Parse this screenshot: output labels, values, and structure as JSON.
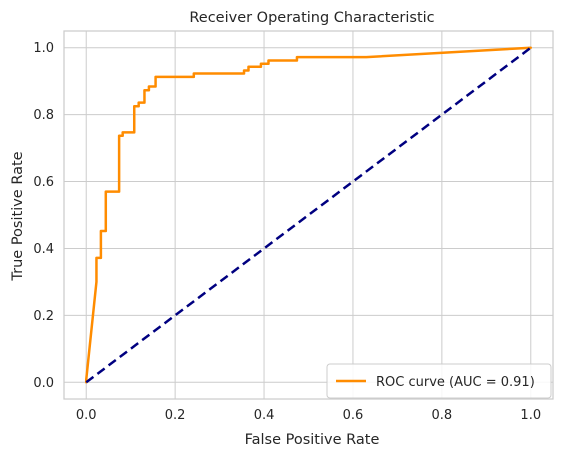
{
  "chart_data": {
    "type": "line",
    "title": "Receiver Operating Characteristic",
    "xlabel": "False Positive Rate",
    "ylabel": "True Positive Rate",
    "xlim": [
      -0.05,
      1.05
    ],
    "ylim": [
      -0.05,
      1.05
    ],
    "x_ticks": [
      0.0,
      0.2,
      0.4,
      0.6,
      0.8,
      1.0
    ],
    "x_tick_labels": [
      "0.0",
      "0.2",
      "0.4",
      "0.6",
      "0.8",
      "1.0"
    ],
    "y_ticks": [
      0.0,
      0.2,
      0.4,
      0.6,
      0.8,
      1.0
    ],
    "y_tick_labels": [
      "0.0",
      "0.2",
      "0.4",
      "0.6",
      "0.8",
      "1.0"
    ],
    "grid": true,
    "legend_position": "bottom-right",
    "series": [
      {
        "name": "ROC curve (AUC = 0.91)",
        "color": "#ff8c00",
        "style": "solid",
        "x": [
          0.0,
          0.0,
          0.023,
          0.023,
          0.033,
          0.033,
          0.044,
          0.044,
          0.066,
          0.066,
          0.074,
          0.074,
          0.082,
          0.082,
          0.108,
          0.108,
          0.118,
          0.118,
          0.131,
          0.131,
          0.141,
          0.141,
          0.156,
          0.156,
          0.242,
          0.242,
          0.355,
          0.355,
          0.365,
          0.365,
          0.393,
          0.393,
          0.41,
          0.41,
          0.474,
          0.474,
          0.63,
          1.0
        ],
        "y": [
          0.0,
          0.008,
          0.3,
          0.372,
          0.372,
          0.452,
          0.452,
          0.57,
          0.57,
          0.57,
          0.57,
          0.737,
          0.737,
          0.747,
          0.747,
          0.825,
          0.825,
          0.836,
          0.836,
          0.873,
          0.873,
          0.884,
          0.884,
          0.913,
          0.913,
          0.923,
          0.923,
          0.932,
          0.932,
          0.943,
          0.943,
          0.952,
          0.952,
          0.962,
          0.962,
          0.972,
          0.972,
          1.0
        ]
      },
      {
        "name": "",
        "color": "#000080",
        "style": "dashed",
        "x": [
          0.0,
          1.0
        ],
        "y": [
          0.0,
          1.0
        ]
      }
    ]
  }
}
